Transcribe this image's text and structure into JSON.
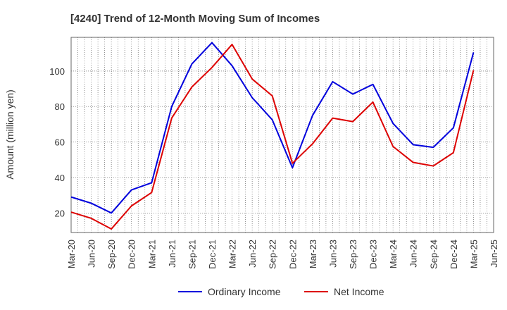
{
  "chart_data": {
    "type": "line",
    "title": "[4240]  Trend of 12-Month Moving Sum of Incomes",
    "xlabel": "",
    "ylabel": "Amount (million yen)",
    "ylim": [
      9,
      119
    ],
    "yticks": [
      20,
      40,
      60,
      80,
      100
    ],
    "grid": true,
    "legend_position": "bottom-center",
    "categories": [
      "Mar-20",
      "Jun-20",
      "Sep-20",
      "Dec-20",
      "Mar-21",
      "Jun-21",
      "Sep-21",
      "Dec-21",
      "Mar-22",
      "Jun-22",
      "Sep-22",
      "Dec-22",
      "Mar-23",
      "Jun-23",
      "Sep-23",
      "Dec-23",
      "Mar-24",
      "Jun-24",
      "Sep-24",
      "Dec-24",
      "Mar-25",
      "Jun-25"
    ],
    "series": [
      {
        "name": "Ordinary Income",
        "color": "#0000dd",
        "values": [
          29,
          25.5,
          20,
          33,
          37,
          80,
          104,
          116,
          103,
          85,
          72.5,
          45.5,
          75,
          94,
          87,
          92.5,
          70.5,
          58.5,
          57,
          68,
          110.5,
          null
        ]
      },
      {
        "name": "Net Income",
        "color": "#dd0000",
        "values": [
          20.5,
          17,
          11,
          24,
          31.5,
          73.5,
          91,
          102,
          115,
          95.5,
          86,
          48,
          59,
          73.5,
          71.5,
          82.5,
          57.5,
          48.5,
          46.5,
          54,
          100.5,
          null
        ]
      }
    ]
  }
}
